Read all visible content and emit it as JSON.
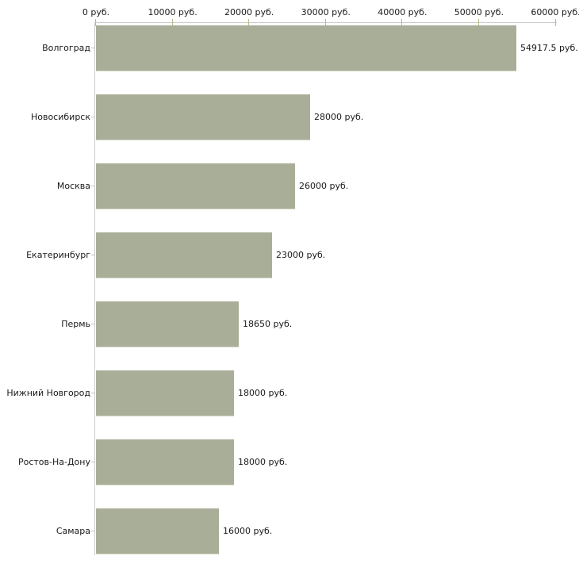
{
  "chart_data": {
    "type": "bar",
    "orientation": "horizontal",
    "title": "",
    "xlabel": "",
    "ylabel": "",
    "unit": "руб.",
    "xlim": [
      0,
      60000
    ],
    "grid": false,
    "legend": null,
    "categories": [
      "Волгоград",
      "Новосибирск",
      "Москва",
      "Екатеринбург",
      "Пермь",
      "Нижний Новгород",
      "Ростов-На-Дону",
      "Самара"
    ],
    "values": [
      54917.5,
      28000,
      26000,
      23000,
      18650,
      18000,
      18000,
      16000
    ],
    "value_labels": [
      "54917.5 руб.",
      "28000 руб.",
      "26000 руб.",
      "23000 руб.",
      "18650 руб.",
      "18000 руб.",
      "18000 руб.",
      "16000 руб."
    ],
    "x_tick_values": [
      0,
      10000,
      20000,
      30000,
      40000,
      50000,
      60000
    ],
    "x_tick_labels": [
      "0 руб.",
      "10000 руб.",
      "20000 руб.",
      "30000 руб.",
      "40000 руб.",
      "50000 руб.",
      "60000 руб."
    ],
    "colors": {
      "bar_fill": "#a9ae98",
      "bar_edge": "#d4d7c5",
      "axis_line": "#cccccc",
      "x_tick_mark": "#b9bc8c",
      "y_tick_mark": "#cfc0c0",
      "text": "#1a1a1a",
      "background": "#ffffff"
    }
  }
}
